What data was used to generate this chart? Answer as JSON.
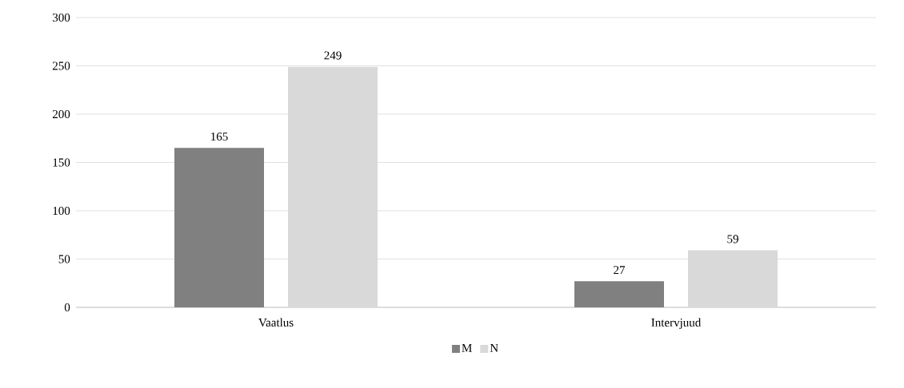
{
  "chart_data": {
    "type": "bar",
    "categories": [
      "Vaatlus",
      "Intervjuud"
    ],
    "series": [
      {
        "name": "M",
        "color": "#808080",
        "values": [
          165,
          27
        ]
      },
      {
        "name": "N",
        "color": "#d9d9d9",
        "values": [
          249,
          59
        ]
      }
    ],
    "ylim": [
      0,
      300
    ],
    "yticks": [
      0,
      50,
      100,
      150,
      200,
      250,
      300
    ],
    "grid": "y",
    "legend": "bottom",
    "data_labels": true
  }
}
